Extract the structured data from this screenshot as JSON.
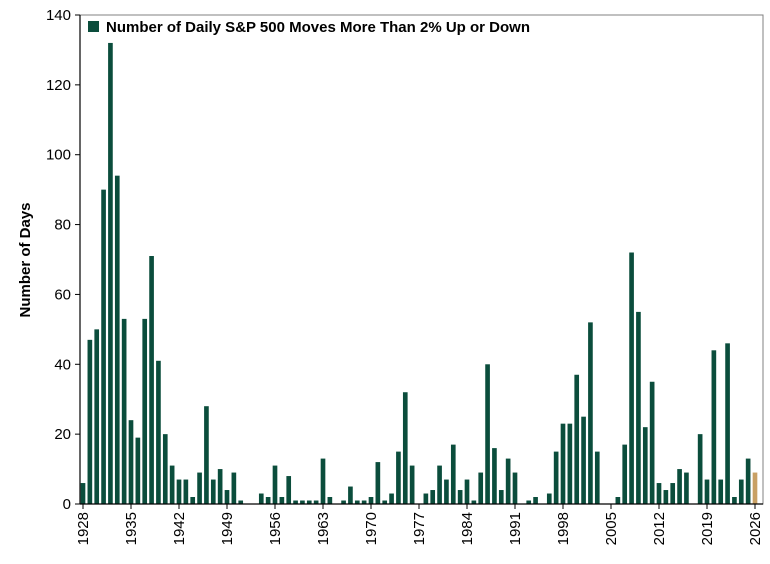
{
  "colors": {
    "bar": "#0b4d3c",
    "highlight_bar": "#c9a064",
    "axis": "#000000",
    "frame": "#808080",
    "text": "#000000"
  },
  "chart_data": {
    "type": "bar",
    "title": "",
    "xlabel": "",
    "ylabel": "Number of Days",
    "ylim": [
      0,
      140
    ],
    "yticks": [
      0,
      20,
      40,
      60,
      80,
      100,
      120,
      140
    ],
    "xticks": [
      "1928",
      "1935",
      "1942",
      "1949",
      "1956",
      "1963",
      "1970",
      "1977",
      "1984",
      "1991",
      "1998",
      "2005",
      "2012",
      "2019",
      "2026"
    ],
    "grid": false,
    "legend_position": "top-left",
    "series": [
      {
        "name": "Number of Daily S&P 500 Moves More Than 2% Up or Down",
        "categories": [
          "1928",
          "1929",
          "1930",
          "1931",
          "1932",
          "1933",
          "1934",
          "1935",
          "1936",
          "1937",
          "1938",
          "1939",
          "1940",
          "1941",
          "1942",
          "1943",
          "1944",
          "1945",
          "1946",
          "1947",
          "1948",
          "1949",
          "1950",
          "1951",
          "1952",
          "1953",
          "1954",
          "1955",
          "1956",
          "1957",
          "1958",
          "1959",
          "1960",
          "1961",
          "1962",
          "1963",
          "1964",
          "1965",
          "1966",
          "1967",
          "1968",
          "1969",
          "1970",
          "1971",
          "1972",
          "1973",
          "1974",
          "1975",
          "1976",
          "1977",
          "1978",
          "1979",
          "1980",
          "1981",
          "1982",
          "1983",
          "1984",
          "1985",
          "1986",
          "1987",
          "1988",
          "1989",
          "1990",
          "1991",
          "1992",
          "1993",
          "1994",
          "1995",
          "1996",
          "1997",
          "1998",
          "1999",
          "2000",
          "2001",
          "2002",
          "2003",
          "2004",
          "2005",
          "2006",
          "2007",
          "2008",
          "2009",
          "2010",
          "2011",
          "2012",
          "2013",
          "2014",
          "2015",
          "2016",
          "2017",
          "2018",
          "2019",
          "2020",
          "2021",
          "2022",
          "2023",
          "2024",
          "2025",
          "2026"
        ],
        "values": [
          6,
          47,
          50,
          90,
          132,
          94,
          53,
          24,
          19,
          53,
          71,
          41,
          20,
          11,
          7,
          7,
          2,
          9,
          28,
          7,
          10,
          4,
          9,
          1,
          0,
          0,
          3,
          2,
          11,
          2,
          8,
          1,
          1,
          1,
          1,
          13,
          2,
          0,
          1,
          5,
          1,
          1,
          2,
          12,
          1,
          3,
          15,
          32,
          11,
          0,
          3,
          4,
          11,
          7,
          17,
          4,
          7,
          1,
          9,
          40,
          16,
          4,
          13,
          9,
          0,
          1,
          2,
          0,
          3,
          15,
          23,
          23,
          37,
          25,
          52,
          15,
          0,
          0,
          2,
          17,
          72,
          55,
          22,
          35,
          6,
          4,
          6,
          10,
          9,
          0,
          20,
          7,
          44,
          7,
          46,
          2,
          7,
          13,
          9
        ]
      }
    ],
    "highlight_category": "2026"
  }
}
